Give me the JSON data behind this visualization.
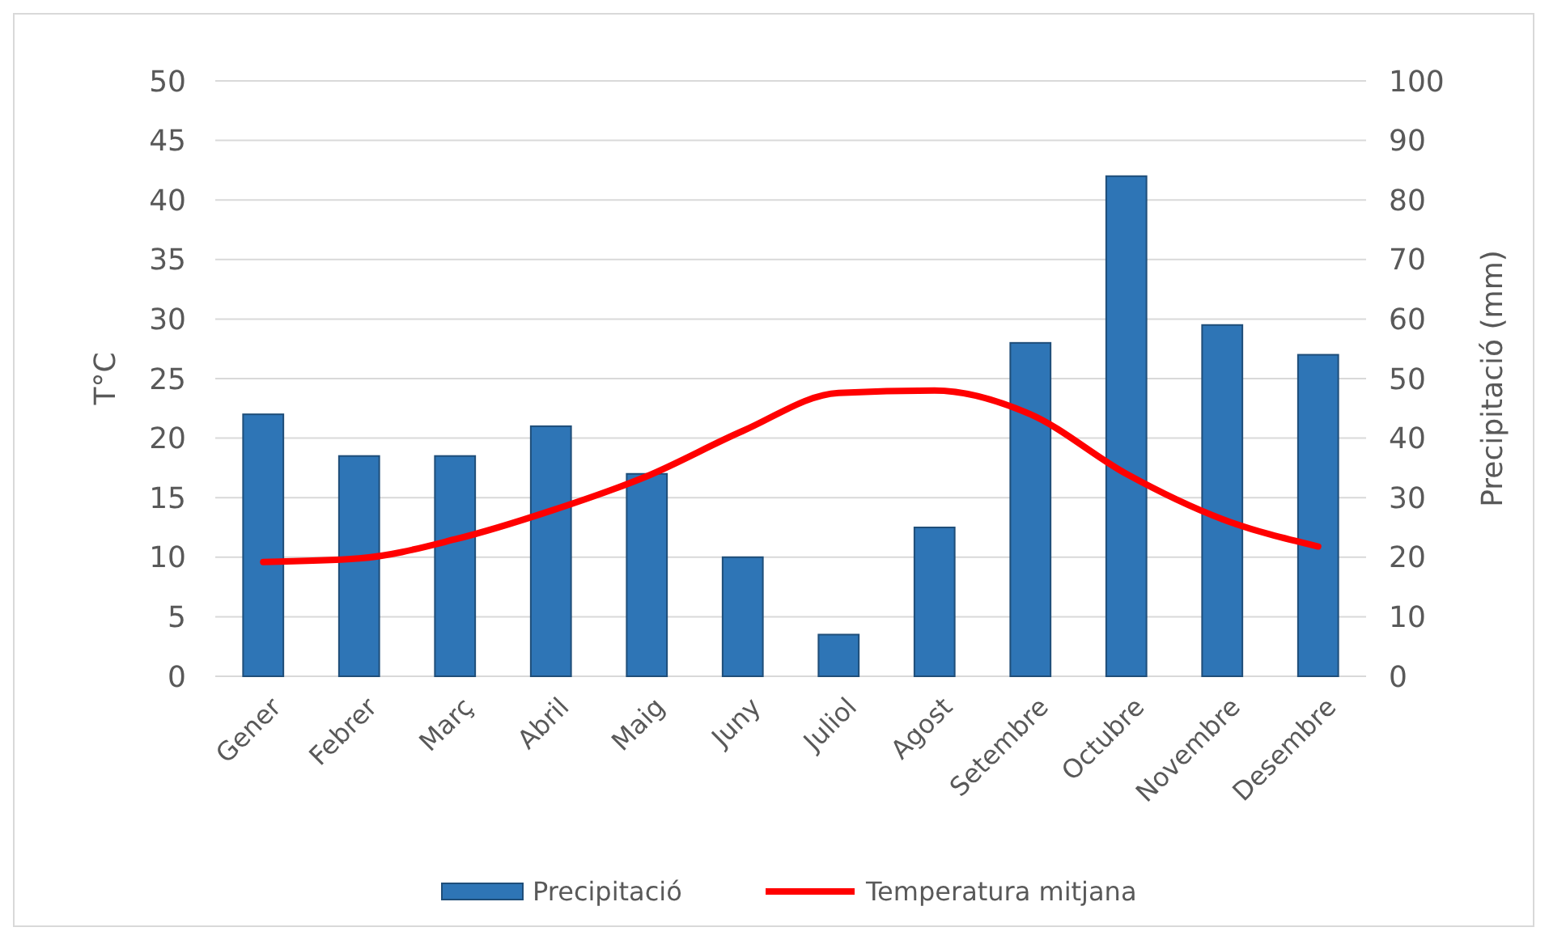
{
  "chart_data": {
    "type": "bar",
    "ylabel": "T°C",
    "y2label": "Precipitació (mm)",
    "categories": [
      "Gener",
      "Febrer",
      "Març",
      "Abril",
      "Maig",
      "Juny",
      "Juliol",
      "Agost",
      "Setembre",
      "Octubre",
      "Novembre",
      "Desembre"
    ],
    "series": [
      {
        "name": "Precipitació",
        "axis": "y2",
        "color": "#2e75b6",
        "values": [
          44,
          37,
          37,
          42,
          34,
          20,
          7,
          25,
          56,
          84,
          59,
          54
        ]
      },
      {
        "name": "Temperatura mitjana",
        "type": "line",
        "axis": "y",
        "color": "#ff0000",
        "values": [
          9.6,
          9.9,
          11.5,
          13.9,
          16.8,
          20.6,
          23.8,
          24,
          22,
          17,
          13.2,
          10.9
        ]
      }
    ],
    "ylim": [
      0,
      50
    ],
    "yticks": [
      0,
      5,
      10,
      15,
      20,
      25,
      30,
      35,
      40,
      45,
      50
    ],
    "y2lim": [
      0,
      100
    ],
    "y2ticks": [
      0,
      10,
      20,
      30,
      40,
      50,
      60,
      70,
      80,
      90,
      100
    ],
    "grid": "y",
    "legend": "bottom",
    "marker": "none",
    "line_style": "solid"
  }
}
